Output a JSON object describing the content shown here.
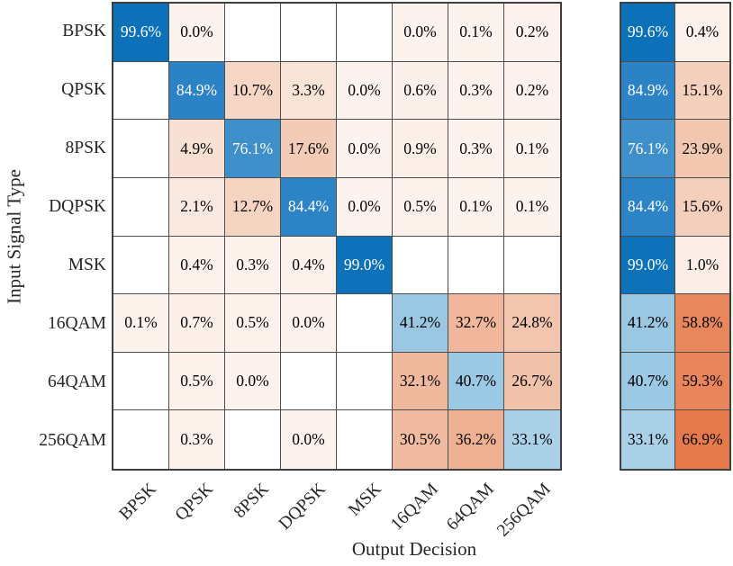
{
  "chart_data": {
    "type": "heatmap",
    "title": "",
    "xlabel": "Output Decision",
    "ylabel": "Input Signal Type",
    "x_categories": [
      "BPSK",
      "QPSK",
      "8PSK",
      "DQPSK",
      "MSK",
      "16QAM",
      "64QAM",
      "256QAM"
    ],
    "y_categories": [
      "BPSK",
      "QPSK",
      "8PSK",
      "DQPSK",
      "MSK",
      "16QAM",
      "64QAM",
      "256QAM"
    ],
    "cell_value_format": "percent_one_decimal",
    "matrix_percent": [
      [
        99.6,
        0.0,
        null,
        null,
        null,
        0.0,
        0.1,
        0.2
      ],
      [
        null,
        84.9,
        10.7,
        3.3,
        0.0,
        0.6,
        0.3,
        0.2
      ],
      [
        null,
        4.9,
        76.1,
        17.6,
        0.0,
        0.9,
        0.3,
        0.1
      ],
      [
        null,
        2.1,
        12.7,
        84.4,
        0.0,
        0.5,
        0.1,
        0.1
      ],
      [
        null,
        0.4,
        0.3,
        0.4,
        99.0,
        null,
        null,
        null
      ],
      [
        0.1,
        0.7,
        0.5,
        0.0,
        null,
        41.2,
        32.7,
        24.8
      ],
      [
        null,
        0.5,
        0.0,
        null,
        null,
        32.1,
        40.7,
        26.7
      ],
      [
        null,
        0.3,
        null,
        0.0,
        null,
        30.5,
        36.2,
        33.1
      ]
    ],
    "row_summary_percent": [
      [
        99.6,
        0.4
      ],
      [
        84.9,
        15.1
      ],
      [
        76.1,
        23.9
      ],
      [
        84.4,
        15.6
      ],
      [
        99.0,
        1.0
      ],
      [
        41.2,
        58.8
      ],
      [
        40.7,
        59.3
      ],
      [
        33.1,
        66.9
      ]
    ],
    "legend_position": "none",
    "grid_on": true,
    "colors": {
      "correct_blue_max": "#0c71ba",
      "error_orange_max": "#e57a4c",
      "empty_cell": "#ffffff",
      "grid_line": "#4d4d4d",
      "text_dark": "#000000",
      "text_light": "#ffffff",
      "blue_ramp_stops": [
        [
          30,
          "#b0d4ea"
        ],
        [
          33.1,
          "#abd1e8"
        ],
        [
          41.2,
          "#9ac7e2"
        ],
        [
          60,
          "#66a7d4"
        ],
        [
          76.1,
          "#3f8fca"
        ],
        [
          85,
          "#2b82c5"
        ],
        [
          100,
          "#0c71ba"
        ]
      ],
      "orange_ramp_stops": [
        [
          0,
          "#fdf3ee"
        ],
        [
          3.3,
          "#f9e4d8"
        ],
        [
          10.7,
          "#f6d7c6"
        ],
        [
          17.6,
          "#f3ccb8"
        ],
        [
          23.9,
          "#f2c7b0"
        ],
        [
          32.7,
          "#f0b79c"
        ],
        [
          45,
          "#eda380"
        ],
        [
          58.8,
          "#e8865c"
        ],
        [
          66.9,
          "#e57a4c"
        ],
        [
          100,
          "#d9602f"
        ]
      ]
    }
  }
}
